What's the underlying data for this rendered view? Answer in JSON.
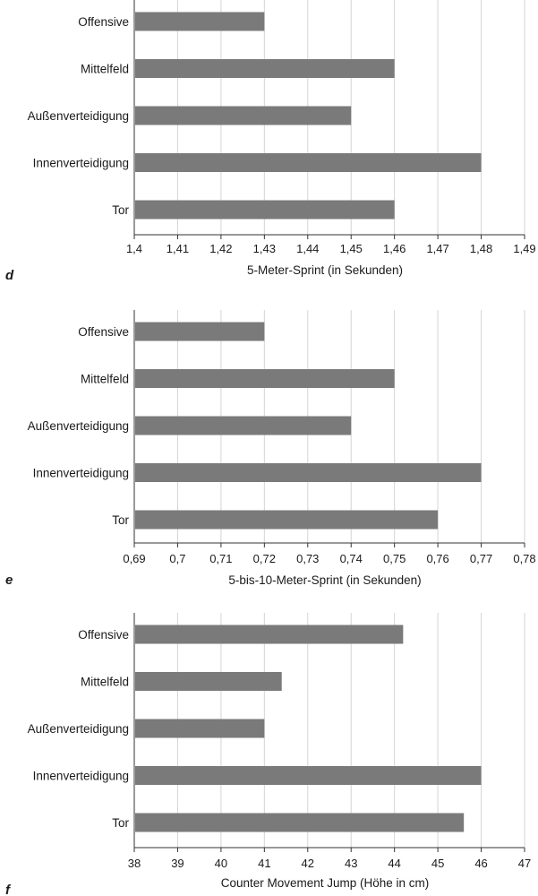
{
  "chart_data": [
    {
      "type": "bar",
      "orientation": "horizontal",
      "panel": "d",
      "categories": [
        "Offensive",
        "Mittelfeld",
        "Außenverteidigung",
        "Innenverteidigung",
        "Tor"
      ],
      "values": [
        1.43,
        1.46,
        1.45,
        1.48,
        1.46
      ],
      "xlabel": "5-Meter-Sprint (in Sekunden)",
      "xlim": [
        1.4,
        1.49
      ],
      "ticks": [
        "1,4",
        "1,41",
        "1,42",
        "1,43",
        "1,44",
        "1,45",
        "1,46",
        "1,47",
        "1,48",
        "1,49"
      ],
      "grid": "vertical",
      "bar_color": "#7a7a7a"
    },
    {
      "type": "bar",
      "orientation": "horizontal",
      "panel": "e",
      "categories": [
        "Offensive",
        "Mittelfeld",
        "Außenverteidigung",
        "Innenverteidigung",
        "Tor"
      ],
      "values": [
        0.72,
        0.75,
        0.74,
        0.77,
        0.76
      ],
      "xlabel": "5-bis-10-Meter-Sprint (in Sekunden)",
      "xlim": [
        0.69,
        0.78
      ],
      "ticks": [
        "0,69",
        "0,7",
        "0,71",
        "0,72",
        "0,73",
        "0,74",
        "0,75",
        "0,76",
        "0,77",
        "0,78"
      ],
      "grid": "vertical",
      "bar_color": "#7a7a7a"
    },
    {
      "type": "bar",
      "orientation": "horizontal",
      "panel": "f",
      "categories": [
        "Offensive",
        "Mittelfeld",
        "Außenverteidigung",
        "Innenverteidigung",
        "Tor"
      ],
      "values": [
        44.2,
        41.4,
        41.0,
        46.0,
        45.6
      ],
      "xlabel": "Counter Movement Jump (Höhe in cm)",
      "xlim": [
        38,
        47
      ],
      "ticks": [
        "38",
        "39",
        "40",
        "41",
        "42",
        "43",
        "44",
        "45",
        "46",
        "47"
      ],
      "grid": "vertical",
      "bar_color": "#7a7a7a"
    }
  ]
}
